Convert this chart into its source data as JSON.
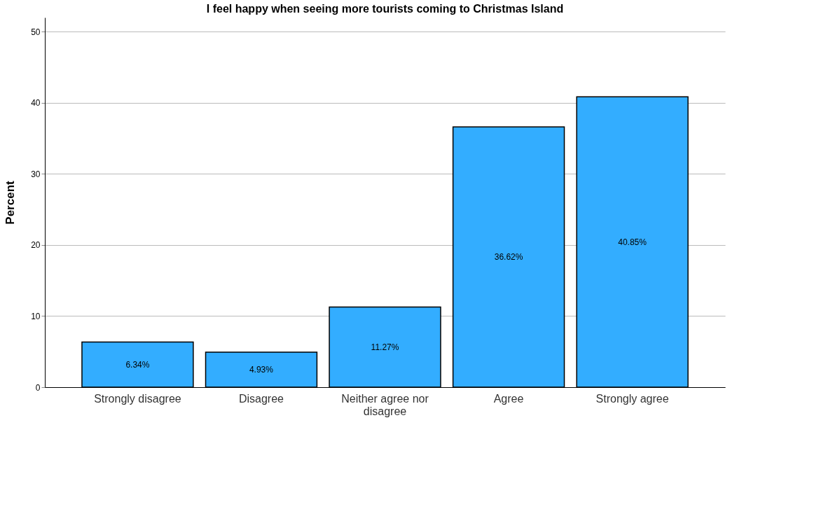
{
  "chart_data": {
    "type": "bar",
    "title": "I feel happy when seeing more tourists coming to Christmas Island",
    "ylabel": "Percent",
    "categories": [
      "Strongly disagree",
      "Disagree",
      "Neither agree nor disagree",
      "Agree",
      "Strongly agree"
    ],
    "values": [
      6.34,
      4.93,
      11.27,
      36.62,
      40.85
    ],
    "value_labels": [
      "6.34%",
      "4.93%",
      "11.27%",
      "36.62%",
      "40.85%"
    ],
    "color": "#33adff",
    "ylim": [
      0,
      52
    ],
    "yticks": [
      0,
      10,
      20,
      30,
      40,
      50
    ],
    "grid": "y"
  }
}
